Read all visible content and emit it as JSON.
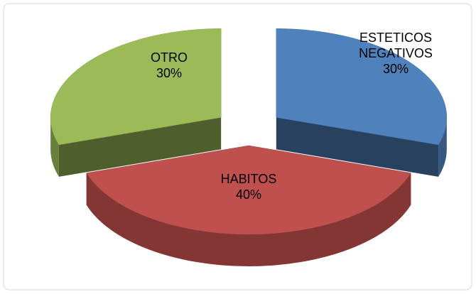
{
  "chart_data": {
    "type": "pie",
    "categories": [
      "ESTETICOS NEGATIVOS",
      "HABITOS",
      "OTRO"
    ],
    "values": [
      30,
      40,
      30
    ],
    "value_labels": [
      "30%",
      "40%",
      "30%"
    ],
    "colors": [
      "#4f81bd",
      "#c0504d",
      "#9bbb59"
    ]
  }
}
